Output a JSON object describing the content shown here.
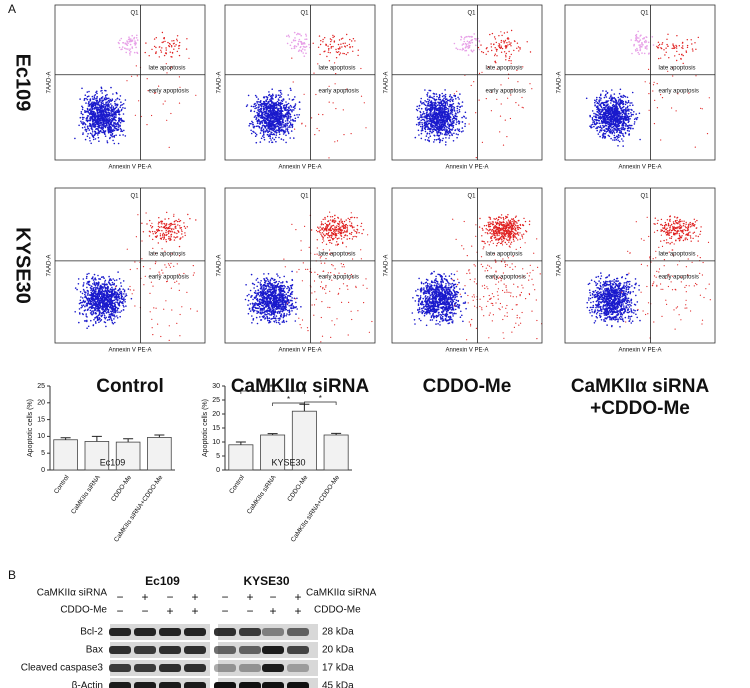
{
  "panel_a": {
    "label": "A",
    "row_labels": [
      "Ec109",
      "KYSE30"
    ],
    "column_labels": [
      [
        "Control"
      ],
      [
        "CaMKIIα siRNA"
      ],
      [
        "CDDO-Me"
      ],
      [
        "CaMKIIα siRNA",
        "+CDDO-Me"
      ]
    ],
    "flow_plot": {
      "quadrant": "Q1",
      "late": "late apoptosis",
      "early": "early apoptosis",
      "x_label": "Annexin V PE-A",
      "y_label": "7AAD-A"
    }
  },
  "chart_data": [
    {
      "type": "bar",
      "title": "Ec109",
      "y_label": "Apoptotic cells (%)",
      "categories": [
        "Control",
        "CaMKIIα siRNA",
        "CDDO-Me",
        "CaMKIIα siRNA+CDDO-Me"
      ],
      "values": [
        9,
        8.5,
        8.3,
        9.7
      ],
      "errors": [
        0.6,
        1.5,
        1,
        0.7
      ],
      "color": "#f2f2f2",
      "ylim": [
        0,
        25
      ],
      "yticks": [
        0,
        5,
        10,
        15,
        20,
        25
      ]
    },
    {
      "type": "bar",
      "title": "KYSE30",
      "y_label": "Apoptotic cells (%)",
      "categories": [
        "Control",
        "CaMKIIα siRNA",
        "CDDO-Me",
        "CaMKIIα siRNA+CDDO-Me"
      ],
      "values": [
        9,
        12.5,
        21,
        12.5
      ],
      "errors": [
        1,
        0.5,
        2.5,
        0.6
      ],
      "color": "#f2f2f2",
      "ylim": [
        0,
        30
      ],
      "yticks": [
        0,
        5,
        10,
        15,
        20,
        25,
        30
      ],
      "annotations": [
        "**",
        "*",
        "*"
      ]
    }
  ],
  "panel_b": {
    "label": "B",
    "cell_lines": [
      "Ec109",
      "KYSE30"
    ],
    "treatments": [
      "CaMKIIα siRNA",
      "CDDO-Me"
    ],
    "signs": [
      [
        [
          "−",
          "+",
          "−",
          "+"
        ],
        [
          "−",
          "−",
          "+",
          "+"
        ]
      ],
      [
        [
          "−",
          "+",
          "−",
          "+"
        ],
        [
          "−",
          "−",
          "+",
          "+"
        ]
      ]
    ],
    "proteins": [
      "Bcl-2",
      "Bax",
      "Cleaved caspase3",
      "β-Actin"
    ],
    "sizes": [
      "28 kDa",
      "20 kDa",
      "17 kDa",
      "45 kDa"
    ]
  }
}
